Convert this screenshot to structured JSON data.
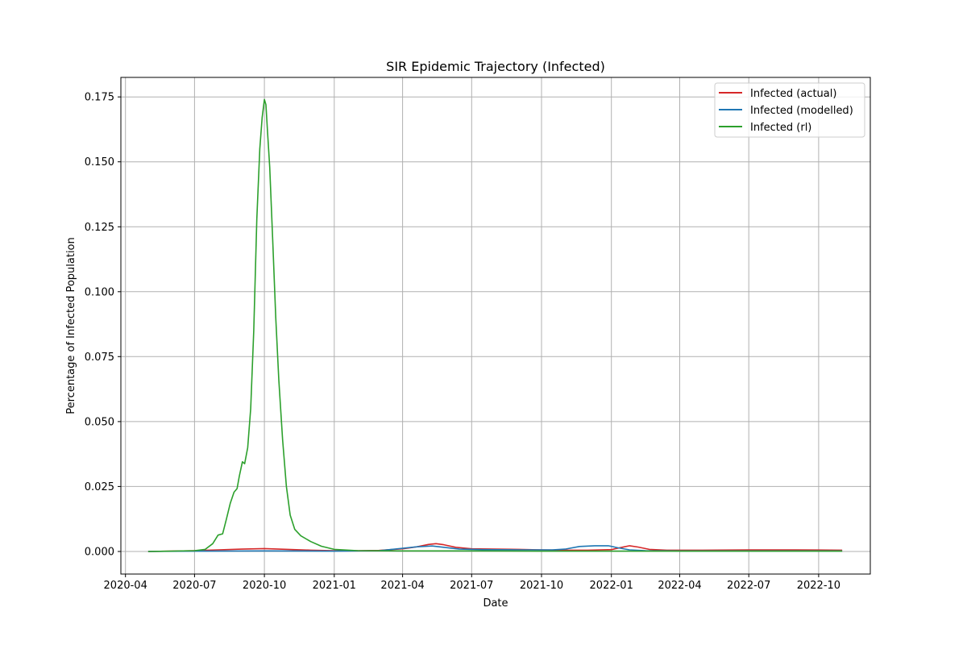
{
  "chart_data": {
    "type": "line",
    "title": "SIR Epidemic Trajectory (Infected)",
    "xlabel": "Date",
    "ylabel": "Percentage of Infected Population",
    "x_axis_type": "date",
    "xlim": [
      "2020-03-26",
      "2022-12-08"
    ],
    "ylim": [
      -0.0087,
      0.1825
    ],
    "x_ticks": [
      "2020-04-01",
      "2020-07-01",
      "2020-10-01",
      "2021-01-01",
      "2021-04-01",
      "2021-07-01",
      "2021-10-01",
      "2022-01-01",
      "2022-04-01",
      "2022-07-01",
      "2022-10-01"
    ],
    "x_tick_labels": [
      "2020-04",
      "2020-07",
      "2020-10",
      "2021-01",
      "2021-04",
      "2021-07",
      "2021-10",
      "2022-01",
      "2022-04",
      "2022-07",
      "2022-10"
    ],
    "y_ticks": [
      0.0,
      0.025,
      0.05,
      0.075,
      0.1,
      0.125,
      0.15,
      0.175
    ],
    "y_tick_labels": [
      "0.000",
      "0.025",
      "0.050",
      "0.075",
      "0.100",
      "0.125",
      "0.150",
      "0.175"
    ],
    "grid": true,
    "legend_position": "top-right",
    "series": [
      {
        "name": "Infected (actual)",
        "color": "#d62728",
        "points": [
          [
            "2020-05-01",
            0.0
          ],
          [
            "2020-06-01",
            0.0001
          ],
          [
            "2020-07-01",
            0.0003
          ],
          [
            "2020-08-01",
            0.0006
          ],
          [
            "2020-09-01",
            0.0009
          ],
          [
            "2020-10-01",
            0.0011
          ],
          [
            "2020-11-01",
            0.0008
          ],
          [
            "2020-12-01",
            0.0005
          ],
          [
            "2021-01-01",
            0.0003
          ],
          [
            "2021-02-01",
            0.0003
          ],
          [
            "2021-03-01",
            0.0004
          ],
          [
            "2021-04-01",
            0.001
          ],
          [
            "2021-04-20",
            0.0018
          ],
          [
            "2021-05-05",
            0.0027
          ],
          [
            "2021-05-15",
            0.003
          ],
          [
            "2021-05-25",
            0.0026
          ],
          [
            "2021-06-10",
            0.0016
          ],
          [
            "2021-07-01",
            0.001
          ],
          [
            "2021-08-01",
            0.0009
          ],
          [
            "2021-09-01",
            0.0008
          ],
          [
            "2021-10-01",
            0.0006
          ],
          [
            "2021-11-01",
            0.0005
          ],
          [
            "2021-12-01",
            0.0005
          ],
          [
            "2022-01-01",
            0.0007
          ],
          [
            "2022-01-15",
            0.0016
          ],
          [
            "2022-01-25",
            0.0022
          ],
          [
            "2022-02-05",
            0.0017
          ],
          [
            "2022-02-20",
            0.0008
          ],
          [
            "2022-03-15",
            0.0005
          ],
          [
            "2022-05-01",
            0.0005
          ],
          [
            "2022-07-01",
            0.0006
          ],
          [
            "2022-09-01",
            0.0006
          ],
          [
            "2022-11-01",
            0.0005
          ]
        ]
      },
      {
        "name": "Infected (modelled)",
        "color": "#1f77b4",
        "points": [
          [
            "2020-05-01",
            0.0
          ],
          [
            "2020-07-01",
            0.0001
          ],
          [
            "2020-10-01",
            0.0002
          ],
          [
            "2021-01-01",
            0.0001
          ],
          [
            "2021-03-01",
            0.0003
          ],
          [
            "2021-04-01",
            0.0012
          ],
          [
            "2021-04-20",
            0.0018
          ],
          [
            "2021-05-10",
            0.0021
          ],
          [
            "2021-05-25",
            0.0016
          ],
          [
            "2021-06-15",
            0.0009
          ],
          [
            "2021-07-15",
            0.0007
          ],
          [
            "2021-09-01",
            0.0006
          ],
          [
            "2021-10-15",
            0.0006
          ],
          [
            "2021-11-01",
            0.0009
          ],
          [
            "2021-11-20",
            0.0019
          ],
          [
            "2021-12-10",
            0.0022
          ],
          [
            "2021-12-28",
            0.0022
          ],
          [
            "2022-01-10",
            0.0014
          ],
          [
            "2022-01-25",
            0.0006
          ],
          [
            "2022-02-15",
            0.0003
          ],
          [
            "2022-04-01",
            0.0002
          ],
          [
            "2022-07-01",
            0.0002
          ],
          [
            "2022-11-01",
            0.0002
          ]
        ]
      },
      {
        "name": "Infected (rl)",
        "color": "#2ca02c",
        "points": [
          [
            "2020-05-01",
            0.0
          ],
          [
            "2020-06-01",
            0.0001
          ],
          [
            "2020-07-01",
            0.0003
          ],
          [
            "2020-07-15",
            0.0008
          ],
          [
            "2020-07-25",
            0.003
          ],
          [
            "2020-08-01",
            0.0063
          ],
          [
            "2020-08-07",
            0.0068
          ],
          [
            "2020-08-12",
            0.0125
          ],
          [
            "2020-08-17",
            0.0185
          ],
          [
            "2020-08-22",
            0.0228
          ],
          [
            "2020-08-26",
            0.0242
          ],
          [
            "2020-08-29",
            0.029
          ],
          [
            "2020-09-02",
            0.0345
          ],
          [
            "2020-09-05",
            0.0338
          ],
          [
            "2020-09-09",
            0.04
          ],
          [
            "2020-09-13",
            0.055
          ],
          [
            "2020-09-17",
            0.085
          ],
          [
            "2020-09-21",
            0.128
          ],
          [
            "2020-09-25",
            0.155
          ],
          [
            "2020-09-28",
            0.167
          ],
          [
            "2020-10-01",
            0.174
          ],
          [
            "2020-10-03",
            0.172
          ],
          [
            "2020-10-05",
            0.162
          ],
          [
            "2020-10-08",
            0.148
          ],
          [
            "2020-10-12",
            0.12
          ],
          [
            "2020-10-16",
            0.09
          ],
          [
            "2020-10-20",
            0.066
          ],
          [
            "2020-10-25",
            0.043
          ],
          [
            "2020-10-30",
            0.025
          ],
          [
            "2020-11-04",
            0.014
          ],
          [
            "2020-11-10",
            0.0085
          ],
          [
            "2020-11-18",
            0.006
          ],
          [
            "2020-12-01",
            0.0038
          ],
          [
            "2020-12-15",
            0.002
          ],
          [
            "2021-01-01",
            0.0008
          ],
          [
            "2021-02-01",
            0.0003
          ],
          [
            "2021-04-01",
            0.0002
          ],
          [
            "2021-07-01",
            0.0002
          ],
          [
            "2021-10-01",
            0.0001
          ],
          [
            "2022-01-01",
            0.0001
          ],
          [
            "2022-04-01",
            0.0001
          ],
          [
            "2022-07-01",
            0.0001
          ],
          [
            "2022-11-01",
            0.0001
          ]
        ]
      }
    ]
  }
}
